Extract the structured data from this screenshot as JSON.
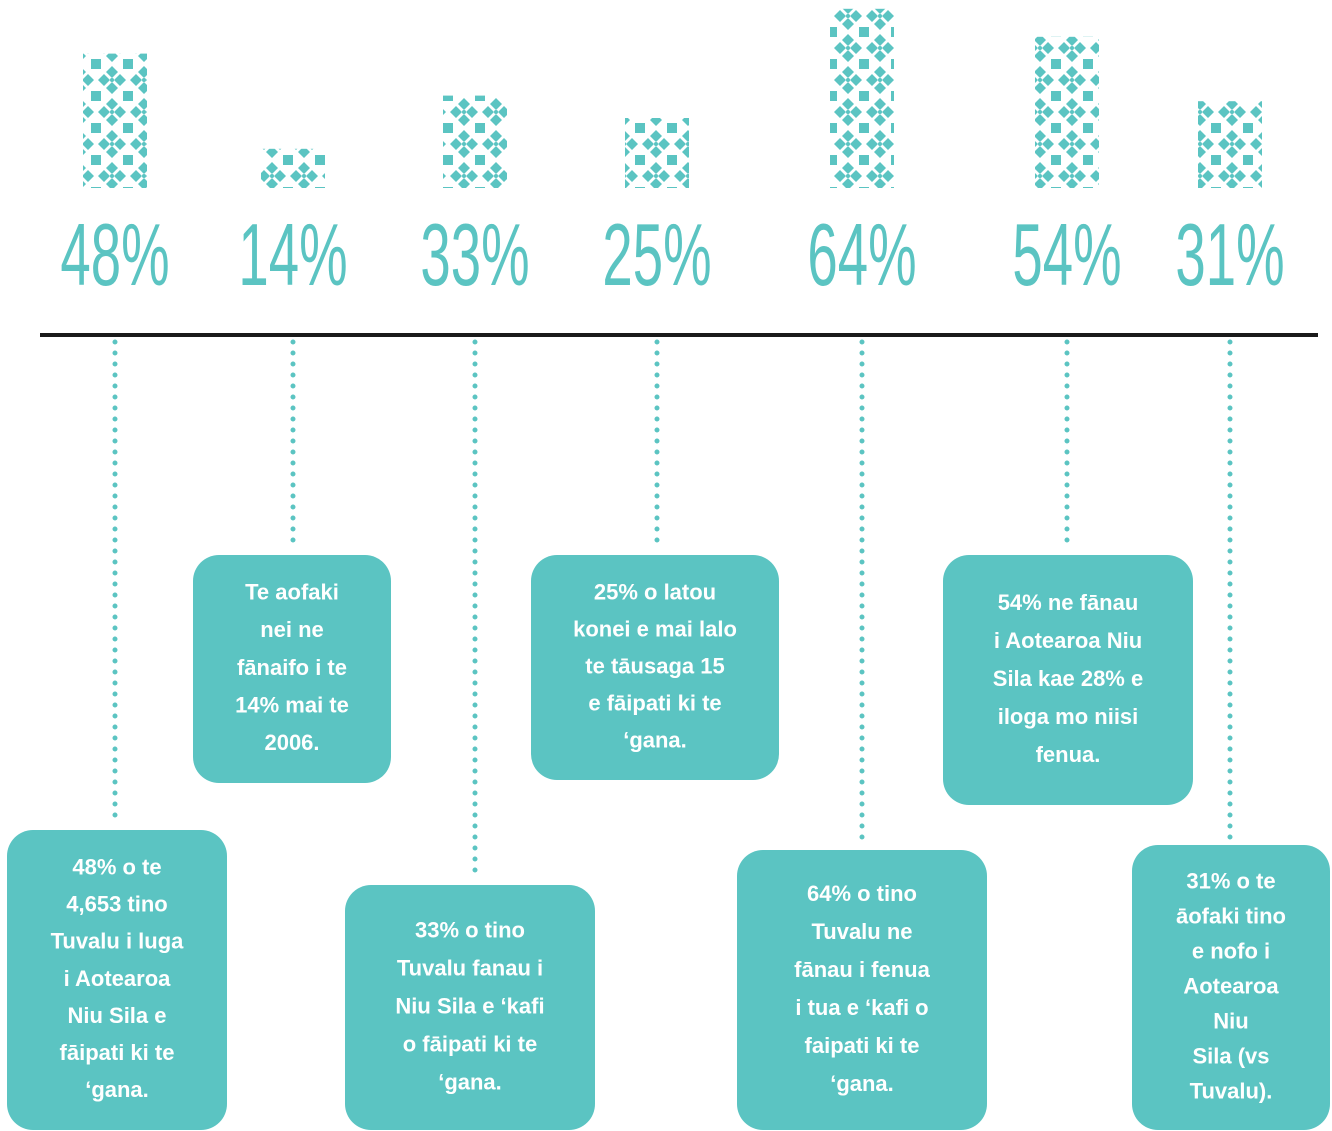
{
  "chart_data": {
    "type": "pictogram",
    "color": "#5bc4c2",
    "values": [
      48,
      14,
      33,
      25,
      64,
      54,
      31
    ],
    "value_labels": [
      "48%",
      "14%",
      "33%",
      "25%",
      "64%",
      "54%",
      "31%"
    ],
    "annotations": [
      [
        "48% o te",
        "4,653 tino",
        "Tuvalu i luga",
        "i Aotearoa",
        "Niu Sila e",
        "fāipati ki te",
        "‘gana."
      ],
      [
        "Te aofaki",
        "nei ne",
        "fānaifo i te",
        "14% mai te",
        "2006."
      ],
      [
        "33% o tino",
        "Tuvalu fanau i",
        "Niu Sila e ‘kafi",
        "o fāipati ki te",
        "‘gana."
      ],
      [
        "25% o latou",
        "konei e mai lalo",
        "te tāusaga 15",
        "e fāipati ki te",
        "‘gana."
      ],
      [
        "64% o tino",
        "Tuvalu ne",
        "fānau i fenua",
        "i tua e ‘kafi o",
        "faipati ki te",
        "‘gana."
      ],
      [
        "54% ne fānau",
        "i Aotearoa Niu",
        "Sila kae 28% e",
        "iloga mo niisi",
        "fenua."
      ],
      [
        "31% o te",
        "āofaki tino",
        "e nofo i",
        "Aotearoa",
        "Niu",
        "Sila (vs",
        "Tuvalu)."
      ]
    ]
  }
}
